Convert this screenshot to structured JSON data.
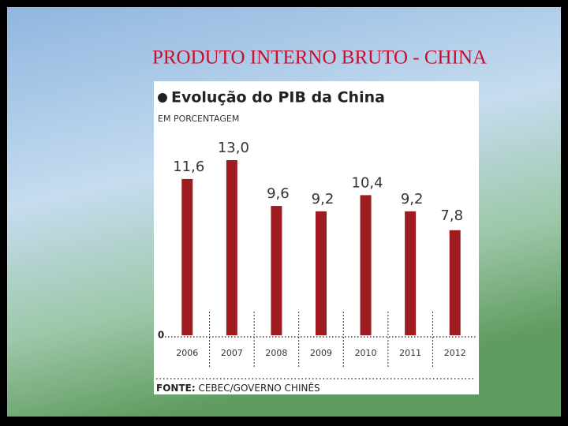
{
  "slide_title": "PRODUTO INTERNO BRUTO - CHINA",
  "chart_data": {
    "type": "bar",
    "title": "Evolução do PIB da China",
    "subtitle": "EM PORCENTAGEM",
    "categories": [
      "2006",
      "2007",
      "2008",
      "2009",
      "2010",
      "2011",
      "2012"
    ],
    "values": [
      11.6,
      13.0,
      9.6,
      9.2,
      10.4,
      9.2,
      7.8
    ],
    "value_labels": [
      "11,6",
      "13,0",
      "9,6",
      "9,2",
      "10,4",
      "9,2",
      "7,8"
    ],
    "color": "#9e1b1f",
    "ylim": [
      0,
      13
    ],
    "yticks": [
      0
    ],
    "source_label": "FONTE:",
    "source": "CEBEC/GOVERNO CHINÊS"
  }
}
